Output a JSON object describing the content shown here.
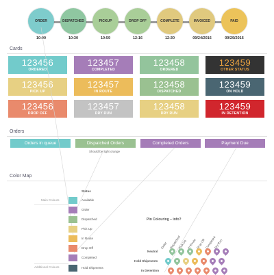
{
  "timeline": {
    "steps": [
      {
        "label": "ORDER",
        "time": "10:00",
        "color": "#7ecccc"
      },
      {
        "label": "DISPATCHED",
        "time": "10:30",
        "color": "#8fc7a1"
      },
      {
        "label": "PICKUP",
        "time": "10:59",
        "color": "#a9ce98"
      },
      {
        "label": "DROP OFF",
        "time": "12:16",
        "color": "#a9ce98"
      },
      {
        "label": "COMPLETE",
        "time": "12:30",
        "color": "#e0c97e"
      },
      {
        "label": "INVOICED",
        "time": "09/24/2016",
        "color": "#e0c97e"
      },
      {
        "label": "PAID",
        "time": "09/29/2016",
        "color": "#ecc35a"
      }
    ]
  },
  "sections": {
    "cards": "Cards",
    "orders": "Orders",
    "color_map": "Color Map"
  },
  "cards": [
    {
      "number": "123456",
      "label": "ORDERED",
      "color": "#72cbcb",
      "text_color": "#ffffff"
    },
    {
      "number": "123457",
      "label": "COMPLETED",
      "color": "#a57db8",
      "text_color": "#ffffff"
    },
    {
      "number": "123458",
      "label": "ORDERED",
      "color": "#93c49c",
      "text_color": "#ffffff"
    },
    {
      "number": "123459",
      "label": "OTHER STATUS",
      "color": "#333333",
      "text_color": "#f0a640"
    },
    {
      "number": "123456",
      "label": "PICK UP",
      "color": "#e7d083",
      "text_color": "#ffffff"
    },
    {
      "number": "123457",
      "label": "IN ROUTE",
      "color": "#ecbc5b",
      "text_color": "#ffffff"
    },
    {
      "number": "123458",
      "label": "DISPATCHED",
      "color": "#9ac191",
      "text_color": "#ffffff"
    },
    {
      "number": "123459",
      "label": "ON HOLD",
      "color": "#4a6672",
      "text_color": "#ffffff"
    },
    {
      "number": "123456",
      "label": "DROP OFF",
      "color": "#e98a6c",
      "text_color": "#ffffff"
    },
    {
      "number": "123457",
      "label": "DRY RUN",
      "color": "#c3c3c3",
      "text_color": "#ffffff"
    },
    {
      "number": "123458",
      "label": "DRY RUN",
      "color": "#e7d083",
      "text_color": "#ffffff"
    },
    {
      "number": "123459",
      "label": "IN DETENTION",
      "color": "#d1262d",
      "text_color": "#ffffff"
    }
  ],
  "orders": {
    "buttons": [
      {
        "label": "Orders in queue",
        "color": "#72cbcb"
      },
      {
        "label": "Dispatched Orders",
        "color": "#9ac191"
      },
      {
        "label": "Completed Orders",
        "color": "#a57db8"
      },
      {
        "label": "Payment Due",
        "color": "#a57db8"
      }
    ],
    "note": "Should be light orange"
  },
  "color_map": {
    "main_colours_label": "Main Colours",
    "additional_colours_label": "Additional Colours",
    "status_header": "Status",
    "rows": [
      {
        "label": "Available",
        "color": "#72cbcb"
      },
      {
        "label": "Order",
        "color": "#a57db8"
      },
      {
        "label": "Dispatched",
        "color": "#9ac191"
      },
      {
        "label": "Pick Up",
        "color": "#e7d083"
      },
      {
        "label": "In Route",
        "color": "#ecbc5b"
      },
      {
        "label": "Drop Off",
        "color": "#e98a6c"
      },
      {
        "label": "Completed",
        "color": "#a57db8"
      },
      {
        "label": "Hold Shipments",
        "color": "#4a6672"
      }
    ],
    "pin_colouring": {
      "title": "Pin Colouring – info?",
      "columns": [
        "Order",
        "Dispatched",
        "Pick Up",
        "In Route",
        "Drop Off",
        "Completed",
        "Dry Run"
      ],
      "rows": [
        {
          "label": "Neutral",
          "pins": [
            "#93c49c",
            "#93c49c",
            "#93c49c",
            "#ecbc5b",
            "#e98a6c",
            "#a57db8",
            "#a57db8"
          ]
        },
        {
          "label": "Hold Shipments",
          "pins": [
            "#72cbcb",
            "#93c49c",
            "#e7d083",
            "#ecbc5b",
            "#e98a6c",
            "#a57db8",
            "#a57db8"
          ]
        },
        {
          "label": "In Detention",
          "pins": [
            "#e98a6c",
            "#e98a6c",
            "#e98a6c",
            "#e98a6c",
            "#e98a6c",
            "#a57db8",
            "#a57db8"
          ]
        }
      ]
    }
  }
}
